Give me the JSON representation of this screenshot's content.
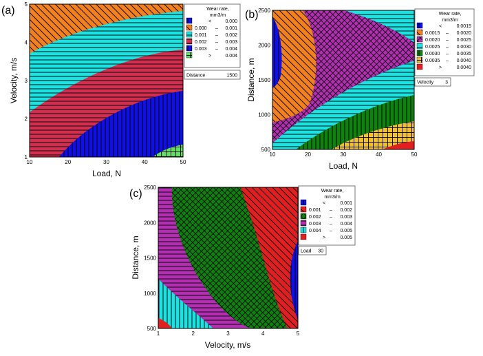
{
  "chart_data": [
    {
      "type": "contour",
      "panel_label": "(a)",
      "xlabel": "Load, N",
      "ylabel": "Velocity, m/s",
      "xlim": [
        10,
        50
      ],
      "ylim": [
        1,
        5
      ],
      "xticks": [
        "10",
        "20",
        "30",
        "40",
        "50"
      ],
      "yticks": [
        "1",
        "2",
        "3",
        "4",
        "5"
      ],
      "legend_title": [
        "Wear rate,",
        "mm3/m"
      ],
      "legend": [
        {
          "color": "#1010e0",
          "pattern": "vertical",
          "op": "<",
          "lo": "",
          "hi": "0.000"
        },
        {
          "color": "#f08020",
          "pattern": "diag",
          "op": "",
          "lo": "0.000",
          "hi": "0.001"
        },
        {
          "color": "#20e0e0",
          "pattern": "horizontal",
          "op": "",
          "lo": "0.001",
          "hi": "0.002"
        },
        {
          "color": "#d03050",
          "pattern": "horizontal",
          "op": "",
          "lo": "0.002",
          "hi": "0.003"
        },
        {
          "color": "#1010e0",
          "pattern": "vertical",
          "op": "",
          "lo": "0.003",
          "hi": "0.004"
        },
        {
          "color": "#60e060",
          "pattern": "cross",
          "op": ">",
          "lo": "",
          "hi": "0.004"
        }
      ],
      "hold": {
        "label": "Distance",
        "value": "1500"
      }
    },
    {
      "type": "contour",
      "panel_label": "(b)",
      "xlabel": "Load, N",
      "ylabel": "Distance, m",
      "xlim": [
        10,
        50
      ],
      "ylim": [
        500,
        2500
      ],
      "xticks": [
        "10",
        "20",
        "30",
        "40",
        "50"
      ],
      "yticks": [
        "500",
        "1000",
        "1500",
        "2000",
        "2500"
      ],
      "legend_title": [
        "Wear rate,",
        "mm3/m"
      ],
      "legend": [
        {
          "color": "#1010e0",
          "pattern": "vertical",
          "op": "<",
          "lo": "",
          "hi": "0.0015"
        },
        {
          "color": "#f08020",
          "pattern": "diag",
          "op": "",
          "lo": "0.0015",
          "hi": "0.0020"
        },
        {
          "color": "#b030b0",
          "pattern": "crosshatch",
          "op": "",
          "lo": "0.0020",
          "hi": "0.0025"
        },
        {
          "color": "#20e0e0",
          "pattern": "horizontal",
          "op": "",
          "lo": "0.0025",
          "hi": "0.0030"
        },
        {
          "color": "#108010",
          "pattern": "vertical",
          "op": "",
          "lo": "0.0030",
          "hi": "0.0035"
        },
        {
          "color": "#f0c030",
          "pattern": "cross",
          "op": "",
          "lo": "0.0035",
          "hi": "0.0040"
        },
        {
          "color": "#e02020",
          "pattern": "none",
          "op": ">",
          "lo": "",
          "hi": "0.0040"
        }
      ],
      "hold": {
        "label": "Velocity",
        "value": "3"
      }
    },
    {
      "type": "contour",
      "panel_label": "(c)",
      "xlabel": "Velocity, m/s",
      "ylabel": "Distance, m",
      "xlim": [
        1,
        5
      ],
      "ylim": [
        500,
        2500
      ],
      "xticks": [
        "1",
        "2",
        "3",
        "4",
        "5"
      ],
      "yticks": [
        "500",
        "1000",
        "1500",
        "2000",
        "2500"
      ],
      "legend_title": [
        "Wear rate,",
        "mm3/m"
      ],
      "legend": [
        {
          "color": "#1010e0",
          "pattern": "vertical",
          "op": "<",
          "lo": "",
          "hi": "0.001"
        },
        {
          "color": "#e02020",
          "pattern": "diag",
          "op": "",
          "lo": "0.001",
          "hi": "0.002"
        },
        {
          "color": "#108010",
          "pattern": "crosshatch",
          "op": "",
          "lo": "0.002",
          "hi": "0.003"
        },
        {
          "color": "#b030b0",
          "pattern": "horizontal",
          "op": "",
          "lo": "0.003",
          "hi": "0.004"
        },
        {
          "color": "#20e0e0",
          "pattern": "vertical",
          "op": "",
          "lo": "0.004",
          "hi": "0.005"
        },
        {
          "color": "#e02020",
          "pattern": "none",
          "op": ">",
          "lo": "",
          "hi": "0.005"
        }
      ],
      "hold": {
        "label": "Load",
        "value": "30"
      }
    }
  ]
}
